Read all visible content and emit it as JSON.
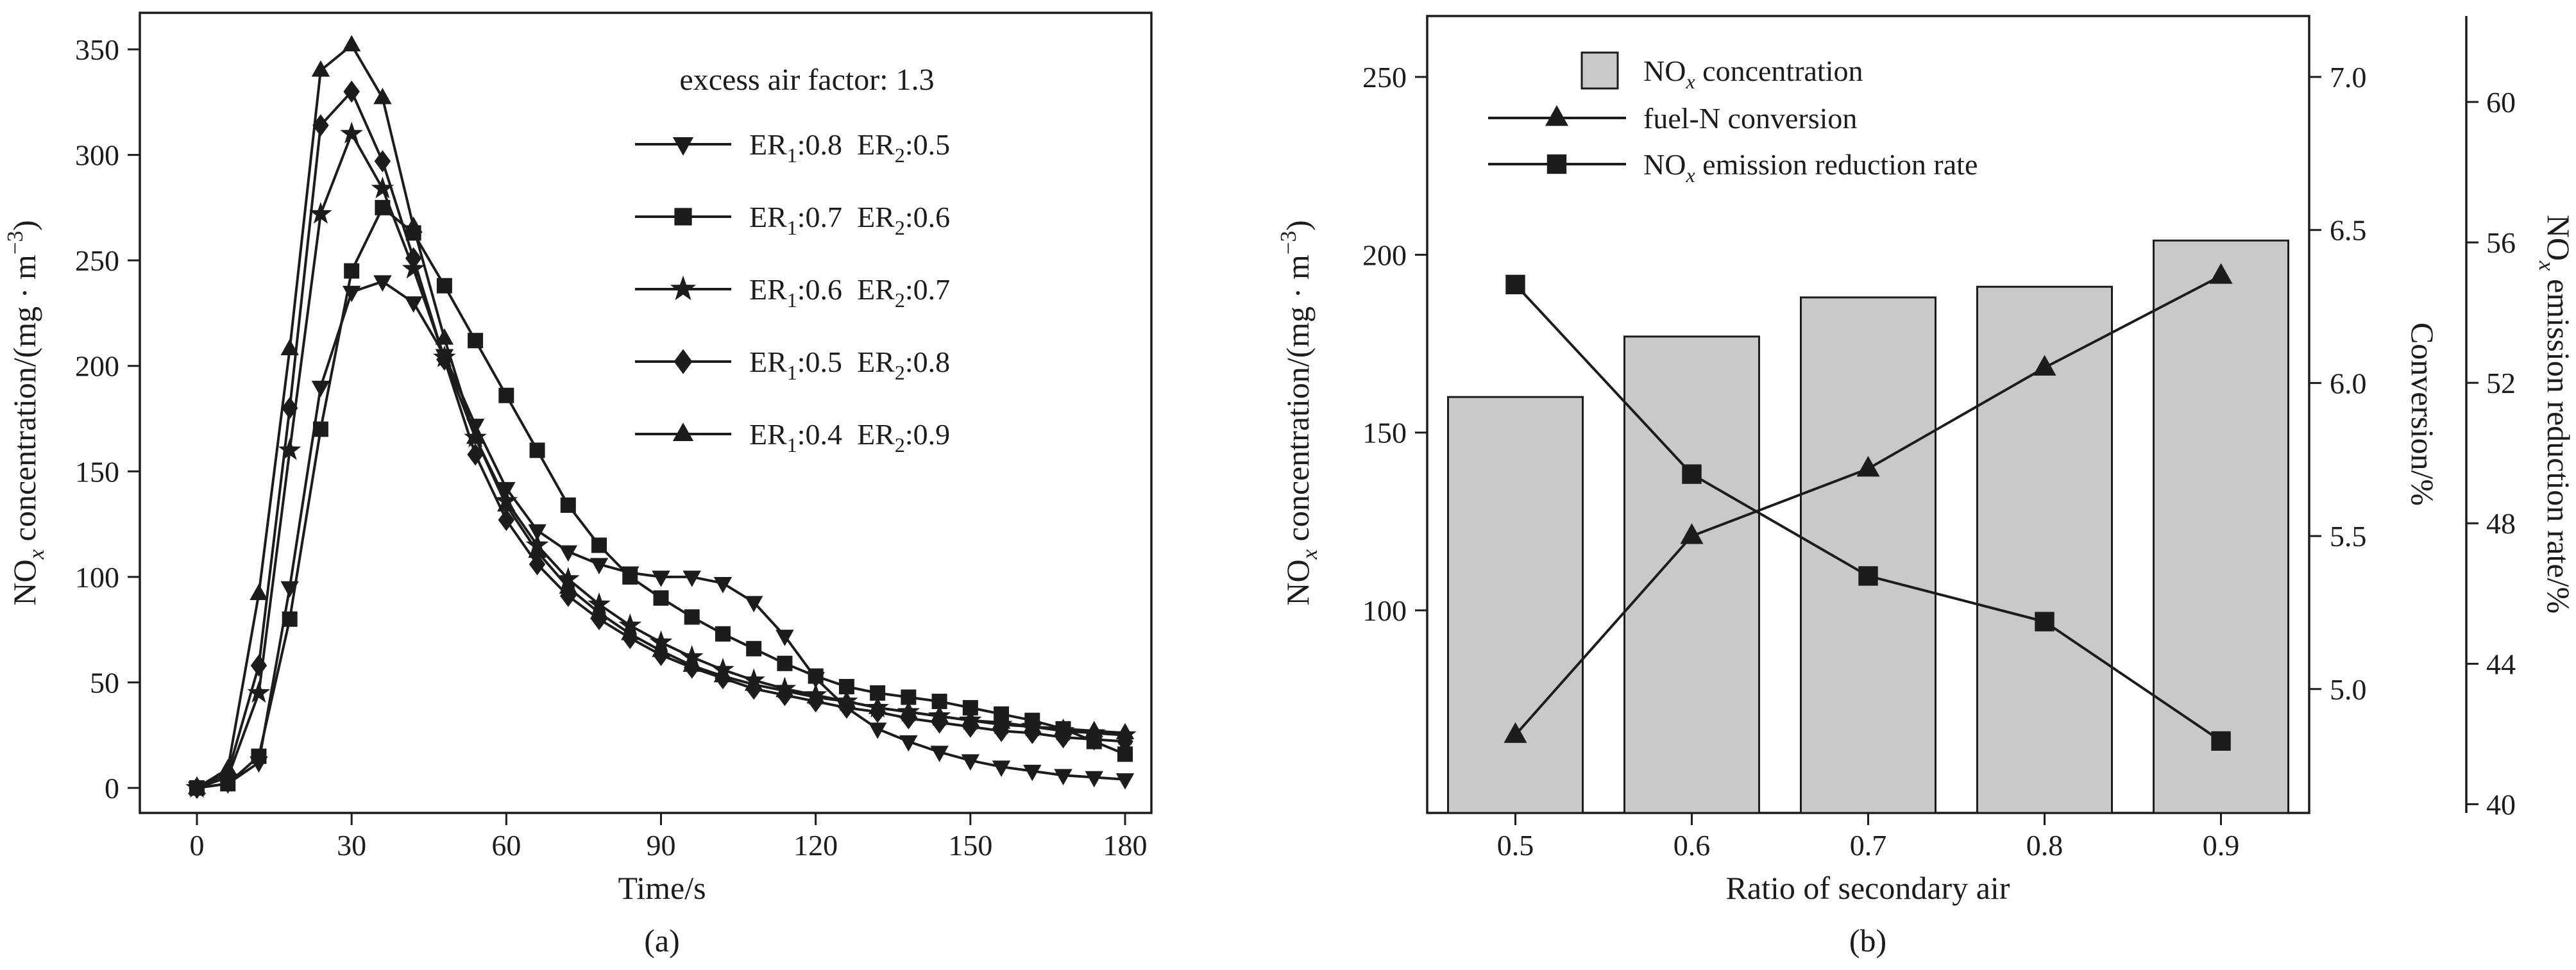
{
  "figure": {
    "background": "#ffffff",
    "ink": "#1c1c1c"
  },
  "chart_data": [
    {
      "id": "a",
      "type": "line",
      "caption": "(a)",
      "xlabel": "Time/s",
      "ylabel": "NOx concentration/(mg · m−3)",
      "ylabel_parts": [
        {
          "t": "NO"
        },
        {
          "t": "x",
          "sub": true,
          "italic": true
        },
        {
          "t": " concentration/(mg · m"
        },
        {
          "t": "−3",
          "sup": true
        },
        {
          "t": ")"
        }
      ],
      "annotation": "excess air factor: 1.3",
      "x_ticks": [
        0,
        30,
        60,
        90,
        120,
        150,
        180
      ],
      "y_ticks": [
        0,
        50,
        100,
        150,
        200,
        250,
        300,
        350
      ],
      "xlim": [
        -12,
        192
      ],
      "ylim": [
        -12,
        380
      ],
      "grid": false,
      "legend_position": "upper-right-inside",
      "x": [
        0,
        6,
        12,
        18,
        24,
        30,
        36,
        42,
        48,
        54,
        60,
        66,
        72,
        78,
        84,
        90,
        96,
        102,
        108,
        114,
        120,
        126,
        132,
        138,
        144,
        150,
        156,
        162,
        168,
        174,
        180
      ],
      "series": [
        {
          "name": "ER1:0.8  ER2:0.5",
          "name_parts": [
            {
              "t": "ER"
            },
            {
              "t": "1",
              "sub": true
            },
            {
              "t": ":0.8"
            },
            {
              "t": "  ER"
            },
            {
              "t": "2",
              "sub": true
            },
            {
              "t": ":0.5"
            }
          ],
          "marker": "triangle-down",
          "values": [
            0,
            2,
            12,
            95,
            190,
            235,
            240,
            230,
            205,
            172,
            142,
            122,
            112,
            106,
            102,
            100,
            100,
            97,
            88,
            72,
            52,
            38,
            28,
            22,
            17,
            13,
            10,
            8,
            6,
            5,
            4
          ]
        },
        {
          "name": "ER1:0.7  ER2:0.6",
          "name_parts": [
            {
              "t": "ER"
            },
            {
              "t": "1",
              "sub": true
            },
            {
              "t": ":0.7"
            },
            {
              "t": "  ER"
            },
            {
              "t": "2",
              "sub": true
            },
            {
              "t": ":0.6"
            }
          ],
          "marker": "square",
          "values": [
            0,
            2,
            15,
            80,
            170,
            245,
            275,
            263,
            238,
            212,
            186,
            160,
            134,
            115,
            100,
            90,
            81,
            73,
            66,
            59,
            53,
            48,
            45,
            43,
            41,
            38,
            35,
            32,
            28,
            22,
            16
          ]
        },
        {
          "name": "ER1:0.6  ER2:0.7",
          "name_parts": [
            {
              "t": "ER"
            },
            {
              "t": "1",
              "sub": true
            },
            {
              "t": ":0.6"
            },
            {
              "t": "  ER"
            },
            {
              "t": "2",
              "sub": true
            },
            {
              "t": ":0.7"
            }
          ],
          "marker": "star",
          "values": [
            0,
            5,
            45,
            160,
            272,
            310,
            284,
            246,
            204,
            166,
            136,
            115,
            99,
            87,
            77,
            69,
            62,
            56,
            51,
            47,
            44,
            41,
            38,
            36,
            34,
            32,
            30,
            29,
            27,
            26,
            25
          ]
        },
        {
          "name": "ER1:0.5  ER2:0.8",
          "name_parts": [
            {
              "t": "ER"
            },
            {
              "t": "1",
              "sub": true
            },
            {
              "t": ":0.5"
            },
            {
              "t": "  ER"
            },
            {
              "t": "2",
              "sub": true
            },
            {
              "t": ":0.8"
            }
          ],
          "marker": "diamond",
          "values": [
            0,
            7,
            58,
            180,
            314,
            330,
            297,
            251,
            203,
            158,
            127,
            106,
            91,
            80,
            71,
            63,
            57,
            52,
            47,
            44,
            41,
            38,
            36,
            33,
            31,
            29,
            27,
            26,
            24,
            23,
            22
          ]
        },
        {
          "name": "ER1:0.4  ER2:0.9",
          "name_parts": [
            {
              "t": "ER"
            },
            {
              "t": "1",
              "sub": true
            },
            {
              "t": ":0.4"
            },
            {
              "t": "  ER"
            },
            {
              "t": "2",
              "sub": true
            },
            {
              "t": ":0.9"
            }
          ],
          "marker": "triangle-up",
          "values": [
            0,
            9,
            92,
            208,
            340,
            352,
            327,
            266,
            213,
            166,
            134,
            112,
            95,
            83,
            73,
            65,
            58,
            53,
            49,
            46,
            43,
            41,
            38,
            36,
            34,
            32,
            31,
            29,
            28,
            27,
            26
          ]
        }
      ]
    },
    {
      "id": "b",
      "type": "combo",
      "caption": "(b)",
      "xlabel": "Ratio of secondary air",
      "categories": [
        "0.5",
        "0.6",
        "0.7",
        "0.8",
        "0.9"
      ],
      "grid": false,
      "legend_position": "upper-left-inside",
      "left_axis": {
        "label": "NOx concentration/(mg · m−3)",
        "label_parts": [
          {
            "t": "NO"
          },
          {
            "t": "x",
            "sub": true,
            "italic": true
          },
          {
            "t": " concentration/(mg · m"
          },
          {
            "t": "−3",
            "sup": true
          },
          {
            "t": ")"
          }
        ],
        "ticks": [
          100,
          150,
          200,
          250
        ],
        "range": [
          43,
          267
        ]
      },
      "conversion_axis": {
        "label": "Conversion/%",
        "ticks": [
          "5.0",
          "5.5",
          "6.0",
          "6.5",
          "7.0"
        ],
        "range": [
          4.6,
          7.2
        ]
      },
      "reduction_axis": {
        "label": "NOx emission reduction rate/%",
        "label_parts": [
          {
            "t": "NO"
          },
          {
            "t": "x",
            "sub": true,
            "italic": true
          },
          {
            "t": " emission reduction rate/%"
          }
        ],
        "ticks": [
          40,
          44,
          48,
          52,
          56,
          60
        ],
        "range": [
          39.8,
          62.4
        ]
      },
      "bars": {
        "name": "NOx concentration",
        "name_parts": [
          {
            "t": "NO"
          },
          {
            "t": "x",
            "sub": true,
            "italic": true
          },
          {
            "t": " concentration"
          }
        ],
        "fill": "#c9c9c9",
        "values": [
          160,
          177,
          188,
          191,
          204
        ]
      },
      "lines": [
        {
          "name": "fuel-N conversion",
          "axis": "conversion",
          "marker": "triangle-up",
          "values": [
            4.85,
            5.5,
            5.72,
            6.05,
            6.35
          ]
        },
        {
          "name": "NOx emission reduction rate",
          "name_parts": [
            {
              "t": "NO"
            },
            {
              "t": "x",
              "sub": true,
              "italic": true
            },
            {
              "t": " emission reduction rate"
            }
          ],
          "axis": "reduction",
          "marker": "square",
          "values": [
            54.8,
            49.4,
            46.5,
            45.2,
            41.8
          ]
        }
      ]
    }
  ]
}
